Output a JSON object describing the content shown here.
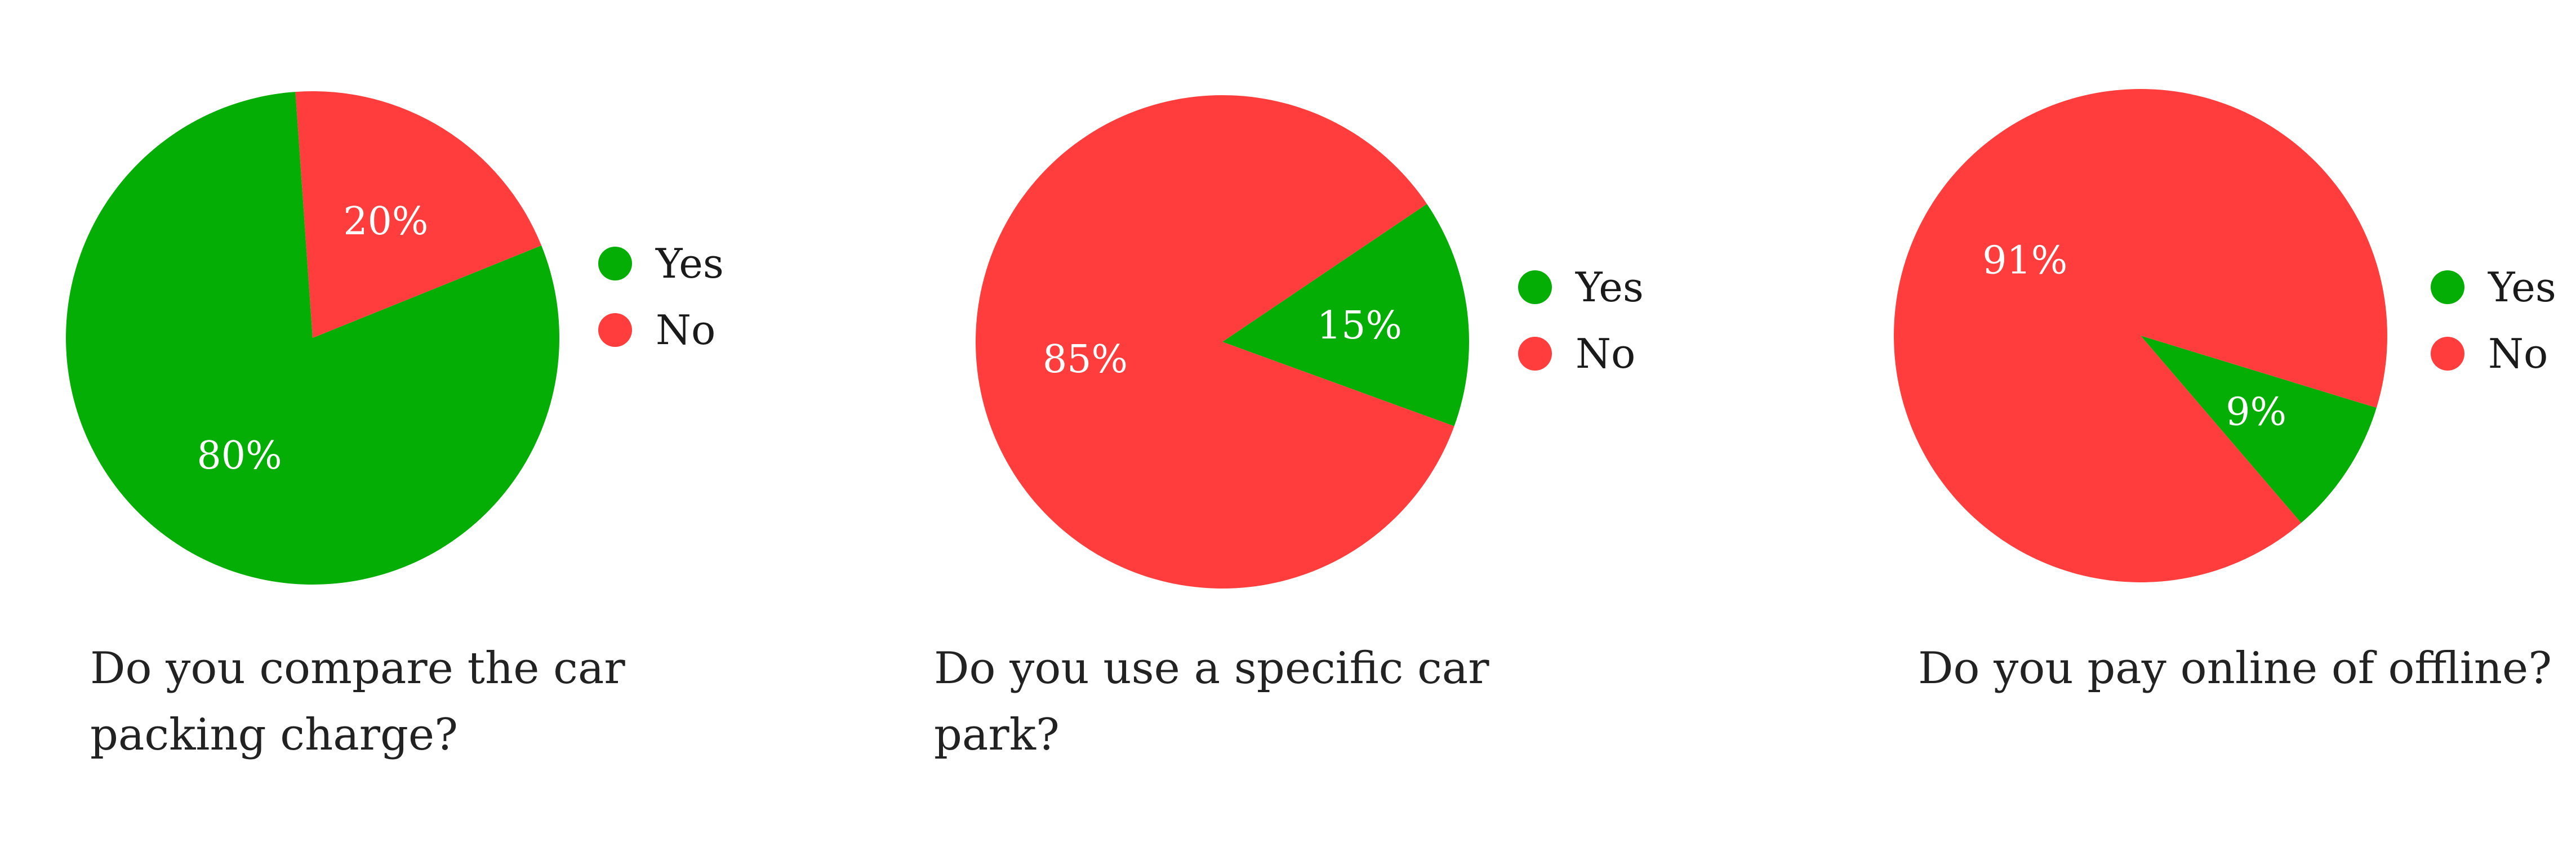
{
  "colors": {
    "yes": "#05AE05",
    "no": "#FF3D3D"
  },
  "chart_data": [
    {
      "type": "pie",
      "title": "Do you compare the car packing charge?",
      "categories": [
        "Yes",
        "No"
      ],
      "values": [
        80,
        20
      ],
      "labels": [
        "80%",
        "20%"
      ],
      "legend": [
        "Yes",
        "No"
      ],
      "legend_position": "right"
    },
    {
      "type": "pie",
      "title": "Do you use a specific car park?",
      "categories": [
        "Yes",
        "No"
      ],
      "values": [
        15,
        85
      ],
      "labels": [
        "15%",
        "85%"
      ],
      "legend": [
        "Yes",
        "No"
      ],
      "legend_position": "right"
    },
    {
      "type": "pie",
      "title": "Do you pay online of offline?",
      "categories": [
        "Yes",
        "No"
      ],
      "values": [
        9,
        91
      ],
      "labels": [
        "9%",
        "91%"
      ],
      "legend": [
        "Yes",
        "No"
      ],
      "legend_position": "right"
    }
  ]
}
